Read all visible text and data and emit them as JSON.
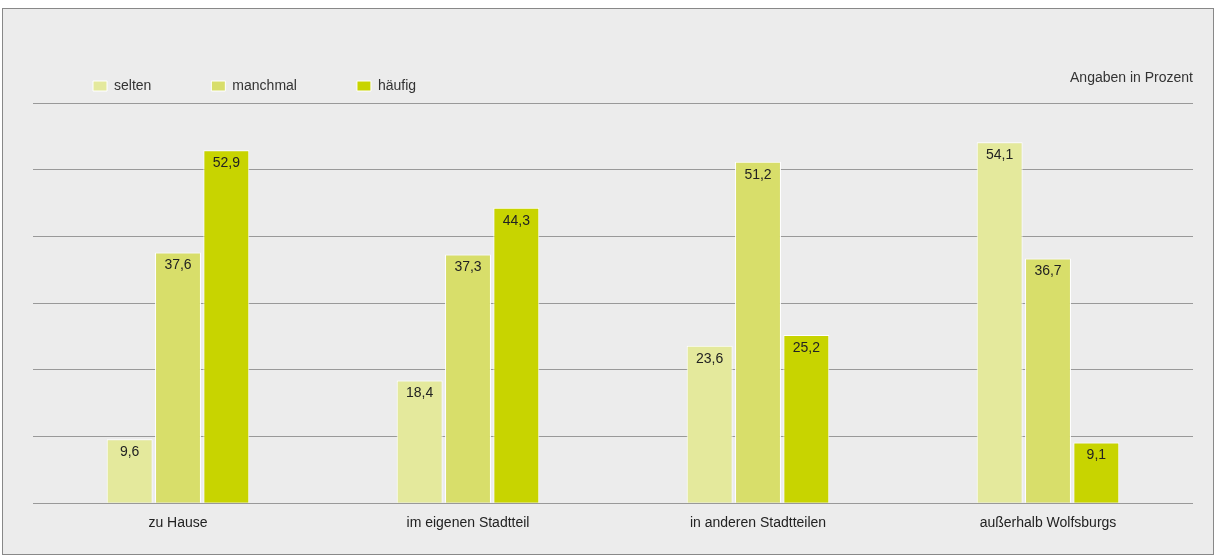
{
  "chart_data": {
    "type": "bar",
    "categories": [
      "zu Hause",
      "im eigenen Stadtteil",
      "in anderen Stadtteilen",
      "außerhalb Wolfsburgs"
    ],
    "series": [
      {
        "name": "selten",
        "color": "#e4e99c",
        "values": [
          9.6,
          18.4,
          23.6,
          54.1
        ],
        "value_labels": [
          "9,6",
          "18,4",
          "23,6",
          "54,1"
        ]
      },
      {
        "name": "manchmal",
        "color": "#d8de6a",
        "values": [
          37.6,
          37.3,
          51.2,
          36.7
        ],
        "value_labels": [
          "37,6",
          "37,3",
          "51,2",
          "36,7"
        ]
      },
      {
        "name": "häufig",
        "color": "#c8d400",
        "values": [
          52.9,
          44.3,
          25.2,
          9.1
        ],
        "value_labels": [
          "52,9",
          "44,3",
          "25,2",
          "9,1"
        ]
      }
    ],
    "grid": "y",
    "legend": "top left",
    "tick_labels": "x",
    "annotations": [
      "Angaben in Prozent"
    ]
  }
}
